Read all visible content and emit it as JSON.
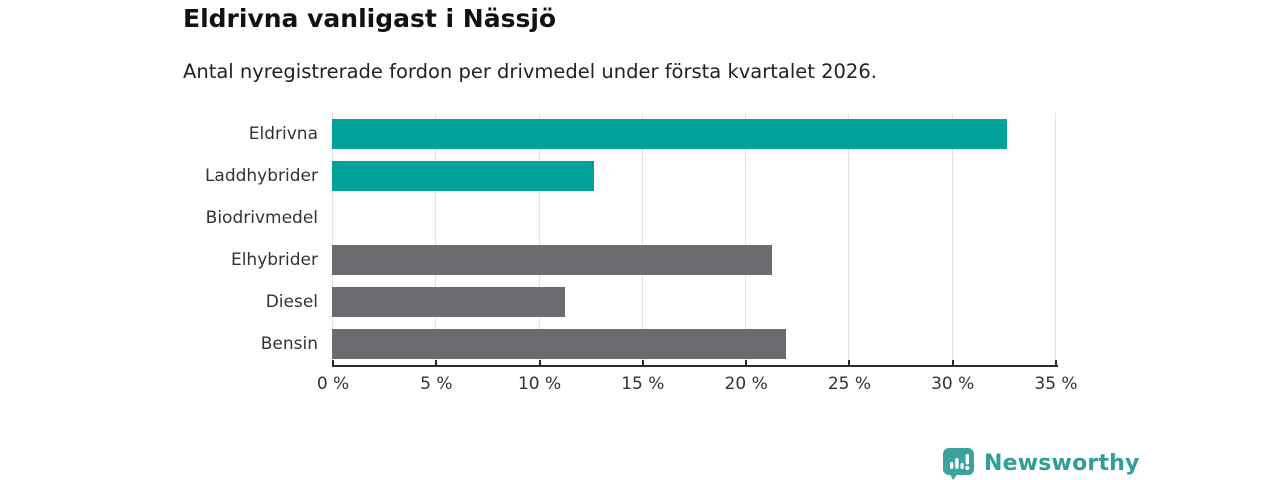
{
  "header": {
    "title": "Eldrivna vanligast i Nässjö",
    "subtitle": "Antal nyregistrerade fordon per drivmedel under första kvartalet 2026."
  },
  "footer": {
    "brand": "Newsworthy",
    "logo_icon": "newsworthy-speech-bubble-bar-chart-icon"
  },
  "colors": {
    "highlight": "#00A29A",
    "neutral": "#6B6B70",
    "axis": "#2B2B2B",
    "gridline": "#E4E4E4",
    "brand": "#2F9E99",
    "title_text": "#111111",
    "body_text": "#333333"
  },
  "chart_data": {
    "type": "bar",
    "orientation": "horizontal",
    "title": "Eldrivna vanligast i Nässjö",
    "subtitle": "Antal nyregistrerade fordon per drivmedel under första kvartalet 2026.",
    "categories": [
      "Eldrivna",
      "Laddhybrider",
      "Biodrivmedel",
      "Elhybrider",
      "Diesel",
      "Bensin"
    ],
    "values": [
      32.7,
      12.7,
      0,
      21.3,
      11.3,
      22.0
    ],
    "unit": "%",
    "bar_colors": [
      "#00A29A",
      "#00A29A",
      "#6B6B70",
      "#6B6B70",
      "#6B6B70",
      "#6B6B70"
    ],
    "xlim": [
      0,
      35
    ],
    "xticks": [
      0,
      5,
      10,
      15,
      20,
      25,
      30,
      35
    ],
    "xtick_labels": [
      "0 %",
      "5 %",
      "10 %",
      "15 %",
      "20 %",
      "25 %",
      "30 %",
      "35 %"
    ],
    "grid": true,
    "legend": "none",
    "xlabel": "",
    "ylabel": ""
  }
}
